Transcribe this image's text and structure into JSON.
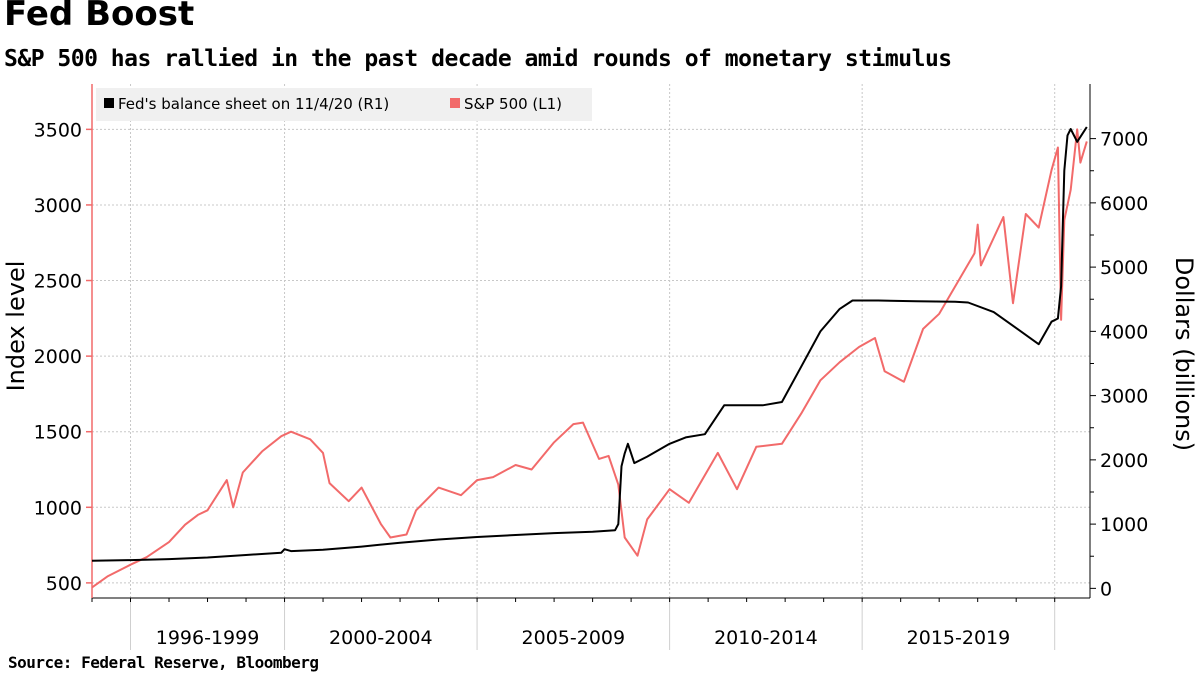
{
  "header": {
    "title": "Fed Boost",
    "subtitle": "S&P 500 has rallied in the past decade amid rounds of monetary stimulus"
  },
  "footer": {
    "source": "Source: Federal Reserve, Bloomberg"
  },
  "colors": {
    "fed": "#000000",
    "sp500": "#f26a6a",
    "grid": "#c8c8c8",
    "axis_left": "#f26a6a"
  },
  "chart_data": {
    "type": "line",
    "title": "Fed Boost",
    "subtitle": "S&P 500 has rallied in the past decade amid rounds of monetary stimulus",
    "x_range": [
      "1995-01",
      "2020-11"
    ],
    "x_period_labels": [
      "1996-1999",
      "2000-2004",
      "2005-2009",
      "2010-2014",
      "2015-2019"
    ],
    "y_left": {
      "label": "Index level",
      "range": [
        400,
        3800
      ],
      "ticks": [
        500,
        1000,
        1500,
        2000,
        2500,
        3000,
        3500
      ]
    },
    "y_right": {
      "label": "Dollars (billions)",
      "range": [
        -150,
        7850
      ],
      "ticks": [
        0,
        1000,
        2000,
        3000,
        4000,
        5000,
        6000,
        7000
      ]
    },
    "grid": true,
    "legend_placement": "top-left",
    "series": [
      {
        "name": "Fed's balance sheet on 11/4/20 (R1)",
        "axis": "right",
        "points": [
          [
            "1995-01",
            430
          ],
          [
            "1996-01",
            440
          ],
          [
            "1997-01",
            455
          ],
          [
            "1998-01",
            480
          ],
          [
            "1999-01",
            520
          ],
          [
            "1999-12",
            555
          ],
          [
            "2000-01",
            610
          ],
          [
            "2000-03",
            580
          ],
          [
            "2001-01",
            600
          ],
          [
            "2002-01",
            650
          ],
          [
            "2003-01",
            710
          ],
          [
            "2004-01",
            760
          ],
          [
            "2005-01",
            800
          ],
          [
            "2006-01",
            830
          ],
          [
            "2007-01",
            860
          ],
          [
            "2008-01",
            880
          ],
          [
            "2008-08",
            905
          ],
          [
            "2008-09",
            1000
          ],
          [
            "2008-10",
            1900
          ],
          [
            "2008-11",
            2100
          ],
          [
            "2008-12",
            2250
          ],
          [
            "2009-02",
            1950
          ],
          [
            "2009-06",
            2050
          ],
          [
            "2010-01",
            2250
          ],
          [
            "2010-06",
            2350
          ],
          [
            "2010-12",
            2400
          ],
          [
            "2011-06",
            2850
          ],
          [
            "2012-06",
            2850
          ],
          [
            "2012-12",
            2900
          ],
          [
            "2013-06",
            3450
          ],
          [
            "2013-12",
            4000
          ],
          [
            "2014-06",
            4350
          ],
          [
            "2014-10",
            4480
          ],
          [
            "2015-06",
            4480
          ],
          [
            "2016-06",
            4470
          ],
          [
            "2017-06",
            4460
          ],
          [
            "2017-10",
            4450
          ],
          [
            "2018-06",
            4300
          ],
          [
            "2019-01",
            4050
          ],
          [
            "2019-08",
            3800
          ],
          [
            "2019-12",
            4150
          ],
          [
            "2020-02",
            4200
          ],
          [
            "2020-03",
            4700
          ],
          [
            "2020-04",
            6500
          ],
          [
            "2020-05",
            7050
          ],
          [
            "2020-06",
            7150
          ],
          [
            "2020-08",
            6950
          ],
          [
            "2020-11",
            7180
          ]
        ]
      },
      {
        "name": "S&P 500  (L1)",
        "axis": "left",
        "points": [
          [
            "1995-01",
            470
          ],
          [
            "1995-06",
            545
          ],
          [
            "1996-01",
            620
          ],
          [
            "1996-06",
            670
          ],
          [
            "1997-01",
            770
          ],
          [
            "1997-06",
            885
          ],
          [
            "1997-10",
            950
          ],
          [
            "1998-01",
            980
          ],
          [
            "1998-07",
            1180
          ],
          [
            "1998-09",
            1000
          ],
          [
            "1998-12",
            1230
          ],
          [
            "1999-06",
            1370
          ],
          [
            "1999-12",
            1470
          ],
          [
            "2000-03",
            1500
          ],
          [
            "2000-09",
            1450
          ],
          [
            "2001-01",
            1360
          ],
          [
            "2001-03",
            1160
          ],
          [
            "2001-09",
            1040
          ],
          [
            "2002-01",
            1130
          ],
          [
            "2002-07",
            890
          ],
          [
            "2002-10",
            800
          ],
          [
            "2003-03",
            820
          ],
          [
            "2003-06",
            980
          ],
          [
            "2004-01",
            1130
          ],
          [
            "2004-08",
            1080
          ],
          [
            "2005-01",
            1180
          ],
          [
            "2005-06",
            1200
          ],
          [
            "2006-01",
            1280
          ],
          [
            "2006-06",
            1250
          ],
          [
            "2007-01",
            1430
          ],
          [
            "2007-07",
            1550
          ],
          [
            "2007-10",
            1560
          ],
          [
            "2008-03",
            1320
          ],
          [
            "2008-06",
            1340
          ],
          [
            "2008-09",
            1150
          ],
          [
            "2008-11",
            800
          ],
          [
            "2009-03",
            680
          ],
          [
            "2009-06",
            920
          ],
          [
            "2010-01",
            1120
          ],
          [
            "2010-07",
            1030
          ],
          [
            "2011-04",
            1360
          ],
          [
            "2011-10",
            1120
          ],
          [
            "2012-04",
            1400
          ],
          [
            "2012-12",
            1420
          ],
          [
            "2013-06",
            1620
          ],
          [
            "2013-12",
            1840
          ],
          [
            "2014-06",
            1960
          ],
          [
            "2014-12",
            2060
          ],
          [
            "2015-05",
            2120
          ],
          [
            "2015-08",
            1900
          ],
          [
            "2016-02",
            1830
          ],
          [
            "2016-08",
            2180
          ],
          [
            "2017-01",
            2280
          ],
          [
            "2017-12",
            2680
          ],
          [
            "2018-01",
            2870
          ],
          [
            "2018-02",
            2600
          ],
          [
            "2018-09",
            2920
          ],
          [
            "2018-12",
            2350
          ],
          [
            "2019-04",
            2940
          ],
          [
            "2019-08",
            2850
          ],
          [
            "2019-12",
            3230
          ],
          [
            "2020-02",
            3380
          ],
          [
            "2020-03",
            2240
          ],
          [
            "2020-04",
            2900
          ],
          [
            "2020-06",
            3100
          ],
          [
            "2020-08",
            3500
          ],
          [
            "2020-09",
            3280
          ],
          [
            "2020-11",
            3420
          ]
        ]
      }
    ]
  }
}
